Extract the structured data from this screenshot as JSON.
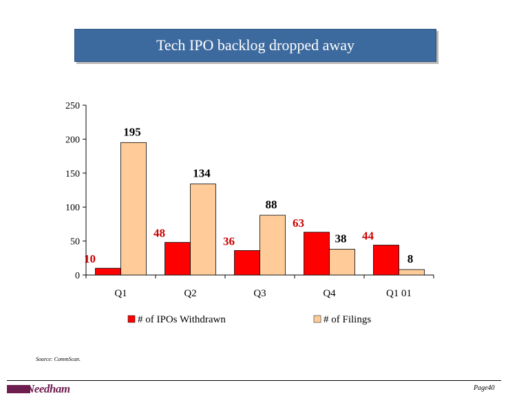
{
  "slide": {
    "title": "Tech IPO backlog dropped away",
    "source": "Source:   CommScan.",
    "logo": "Needham",
    "page": "Page40"
  },
  "colors": {
    "title_bg": "#3d6a9e",
    "withdrawn": "#ff0000",
    "filings": "#ffcc99",
    "withdrawn_label": "#cc0000",
    "logo": "#6e1e4e"
  },
  "chart_data": {
    "type": "bar",
    "categories": [
      "Q1",
      "Q2",
      "Q3",
      "Q4",
      "Q1 01"
    ],
    "series": [
      {
        "name": "# of IPOs Withdrawn",
        "values": [
          10,
          48,
          36,
          63,
          44
        ],
        "color": "#ff0000",
        "label_color": "#cc0000"
      },
      {
        "name": "# of Filings",
        "values": [
          195,
          134,
          88,
          38,
          8
        ],
        "color": "#ffcc99",
        "label_color": "#000000"
      }
    ],
    "yticks": [
      0,
      50,
      100,
      150,
      200,
      250
    ],
    "ylim": [
      0,
      250
    ],
    "legend_position": "bottom",
    "grid": false
  }
}
